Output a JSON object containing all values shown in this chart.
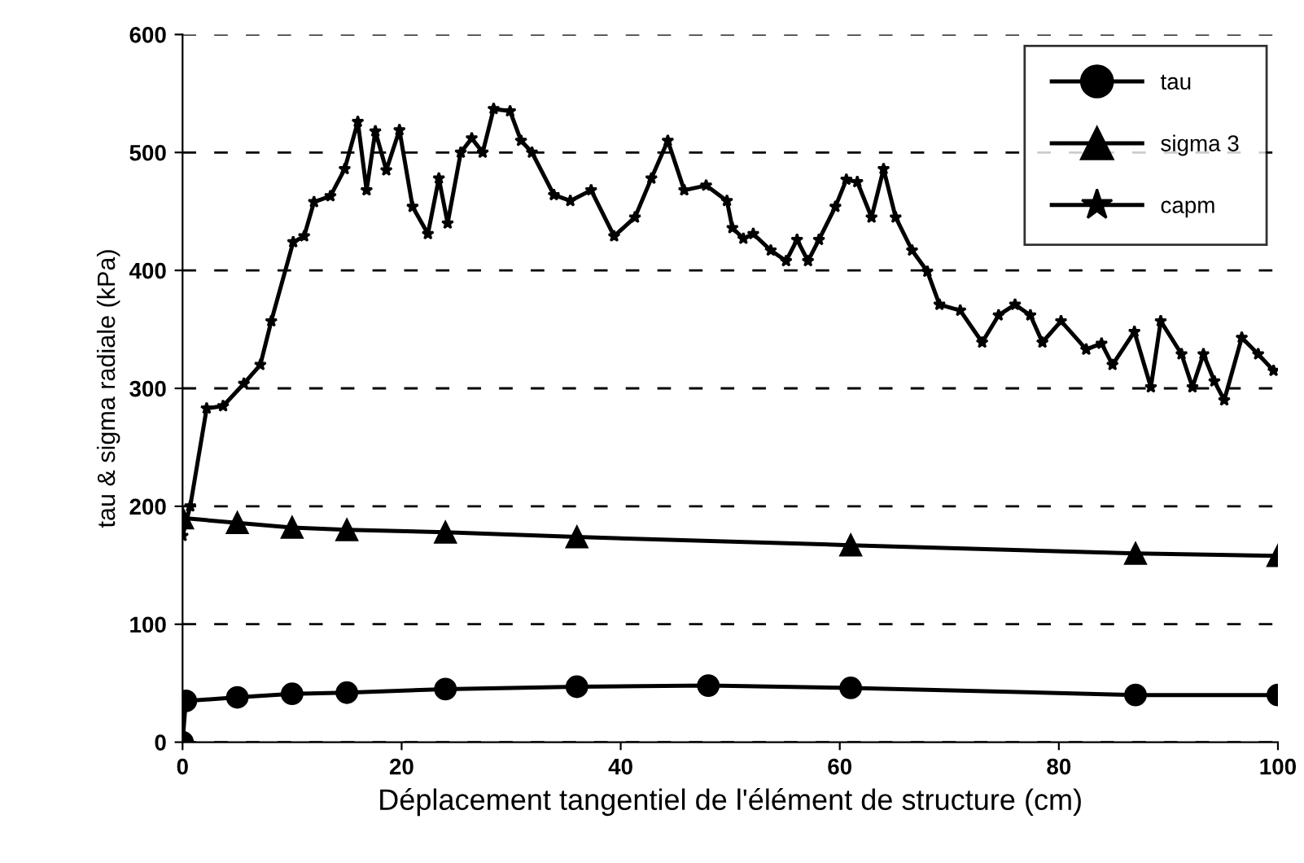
{
  "chart_data": {
    "type": "line",
    "xlabel": "Déplacement tangentiel de l'élément de structure (cm)",
    "ylabel": "tau & sigma radiale (kPa)",
    "xlim": [
      0,
      100
    ],
    "ylim": [
      0,
      600
    ],
    "xticks": [
      0,
      20,
      40,
      60,
      80,
      100
    ],
    "yticks": [
      0,
      100,
      200,
      300,
      400,
      500,
      600
    ],
    "grid": "y",
    "legend": "top right",
    "line_style": "solid",
    "series": [
      {
        "name": "tau",
        "color": "#000000",
        "marker": "circle",
        "x": [
          0,
          0.3,
          5,
          10,
          15,
          24,
          36,
          48,
          61,
          87,
          100
        ],
        "values": [
          0,
          35,
          38,
          41,
          42,
          45,
          47,
          48,
          46,
          40,
          40
        ]
      },
      {
        "name": "sigma 3",
        "color": "#000000",
        "marker": "triangle",
        "x": [
          0,
          5,
          10,
          15,
          24,
          36,
          61,
          87,
          100
        ],
        "values": [
          190,
          186,
          182,
          180,
          178,
          174,
          167,
          160,
          158
        ]
      },
      {
        "name": "capm",
        "color": "#000000",
        "marker": "star",
        "x": [
          0,
          0.7,
          2.2,
          3.7,
          5.6,
          7.1,
          8.1,
          10.1,
          11.1,
          12,
          13.5,
          14.8,
          16,
          16.8,
          17.6,
          18.6,
          19.8,
          21,
          22.4,
          23.4,
          24.2,
          25.4,
          26.4,
          27.4,
          28.4,
          29.9,
          30.9,
          31.9,
          33.9,
          35.4,
          37.3,
          39.4,
          41.3,
          42.8,
          44.3,
          45.8,
          47.8,
          49.7,
          50.2,
          51.2,
          52.1,
          53.7,
          55.1,
          56.1,
          57.1,
          58.1,
          59.6,
          60.6,
          61.6,
          62.9,
          64,
          65.1,
          66.6,
          68,
          69.1,
          71,
          73,
          74.5,
          76,
          77.4,
          78.5,
          80.2,
          82.5,
          83.9,
          84.9,
          86.9,
          88.4,
          89.3,
          91.2,
          92.2,
          93.2,
          94.2,
          95.1,
          96.7,
          98.2,
          99.6
        ],
        "values": [
          175,
          200,
          283,
          285,
          304,
          320,
          357,
          424,
          429,
          458,
          463,
          486,
          526,
          468,
          518,
          485,
          519,
          454,
          431,
          478,
          440,
          500,
          512,
          500,
          537,
          535,
          510,
          500,
          464,
          459,
          468,
          429,
          445,
          478,
          510,
          468,
          472,
          459,
          436,
          427,
          431,
          417,
          408,
          426,
          408,
          426,
          454,
          477,
          475,
          445,
          486,
          445,
          417,
          399,
          371,
          366,
          339,
          362,
          371,
          362,
          339,
          357,
          333,
          338,
          320,
          348,
          301,
          357,
          329,
          301,
          329,
          306,
          290,
          343,
          329,
          315
        ]
      }
    ]
  }
}
